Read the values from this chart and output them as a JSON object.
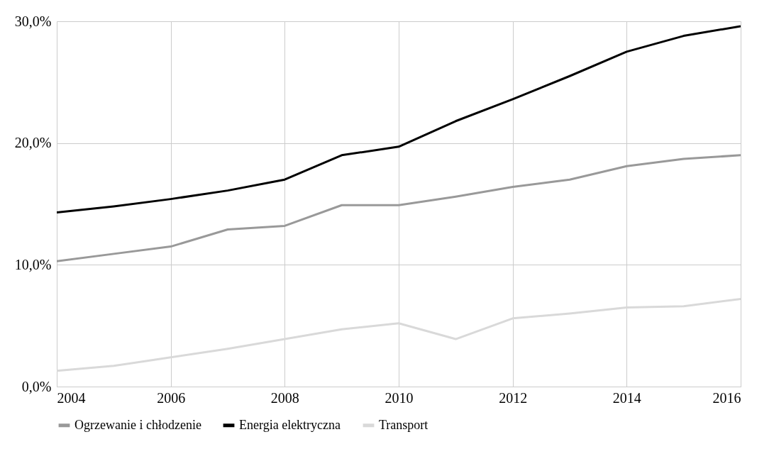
{
  "chart_data": {
    "type": "line",
    "x": [
      2004,
      2005,
      2006,
      2007,
      2008,
      2009,
      2010,
      2011,
      2012,
      2013,
      2014,
      2015,
      2016
    ],
    "xlim": [
      2004,
      2016
    ],
    "xticks": [
      2004,
      2006,
      2008,
      2010,
      2012,
      2014,
      2016
    ],
    "ylim": [
      0,
      30
    ],
    "yticks": [
      {
        "value": 0,
        "label": "0,0%"
      },
      {
        "value": 10,
        "label": "10,0%"
      },
      {
        "value": 20,
        "label": "20,0%"
      },
      {
        "value": 30,
        "label": "30,0%"
      }
    ],
    "grid": true,
    "legend": "bottom",
    "marker": "none",
    "line_style": "solid",
    "series": [
      {
        "name": "Ogrzewanie i chłodzenie",
        "color": "#999999",
        "values": [
          10.3,
          10.9,
          11.5,
          12.9,
          13.2,
          14.9,
          14.9,
          15.6,
          16.4,
          17.0,
          18.1,
          18.7,
          19.0
        ]
      },
      {
        "name": "Energia elektryczna",
        "color": "#000000",
        "values": [
          14.3,
          14.8,
          15.4,
          16.1,
          17.0,
          19.0,
          19.7,
          21.8,
          23.6,
          25.5,
          27.5,
          28.8,
          29.6
        ]
      },
      {
        "name": "Transport",
        "color": "#d9d9d9",
        "values": [
          1.3,
          1.7,
          2.4,
          3.1,
          3.9,
          4.7,
          5.2,
          3.9,
          5.6,
          6.0,
          6.5,
          6.6,
          7.2
        ]
      }
    ]
  }
}
